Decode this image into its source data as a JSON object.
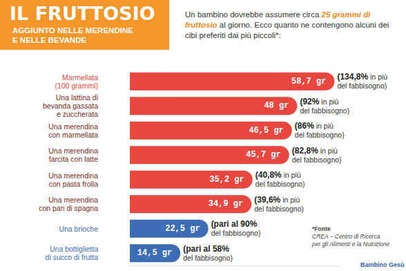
{
  "chart_data": {
    "type": "bar",
    "orientation": "horizontal",
    "title": "IL FRUTTOSIO",
    "subtitle": "AGGIUNTO NELLE MERENDINE\nE NELLE BEVANDE",
    "intro": [
      "Un bambino dovrebbe assumere circa ",
      "25 grammi di fruttosio",
      " al giorno.  Ecco quanto ne contengono alcuni dei cibi preferiti dai più piccoli*:"
    ],
    "categories": [
      "Marmellata\n(100 grammi)",
      "Una lattina di\nbevanda gassata\ne zuccherata",
      "Una merendina\ncon marmellata",
      "Una merendina\nfarcita con latte",
      "Una merendina\ncon pasta frolla",
      "Una merendina\ncon pan di spagna",
      "Una brioche",
      "Una bottiglietta\ndi succo di frutta"
    ],
    "values": [
      58.7,
      48,
      46.5,
      45.7,
      35.2,
      34.9,
      22.5,
      14.5
    ],
    "value_labels": [
      "58,7 gr",
      "48 gr",
      "46,5 gr",
      "45,7 gr",
      "35,2 gr",
      "34,9 gr",
      "22,5 gr",
      "14,5 gr"
    ],
    "data_labels": true,
    "colors": [
      "#e8473f",
      "#e8473f",
      "#e8473f",
      "#e8473f",
      "#e8473f",
      "#e8473f",
      "#3d6db5",
      "#3d6db5"
    ],
    "annotations": [
      "(134,8% in più\ndel fabbisogno)",
      "(92% in più\ndel fabbisogno)",
      "(86% in più\ndel fabbisogno)",
      "(82,8% in più\ndel fabbisogno)",
      "(40,8% in più\ndel fabbisogno)",
      "(39,6% in più\ndel fabbisogno)",
      "(pari al 90%\ndel fabbisogno)",
      "(pari al 58%\ndel fabbisogno)"
    ],
    "source": [
      "*Fonte",
      "CREA – Centro di Ricerca\nper gli Alimenti e la Nutrizione"
    ],
    "logo": "Bambino Gesù",
    "xlim": [
      0,
      60
    ],
    "grid": false,
    "tick_labels": "y"
  }
}
